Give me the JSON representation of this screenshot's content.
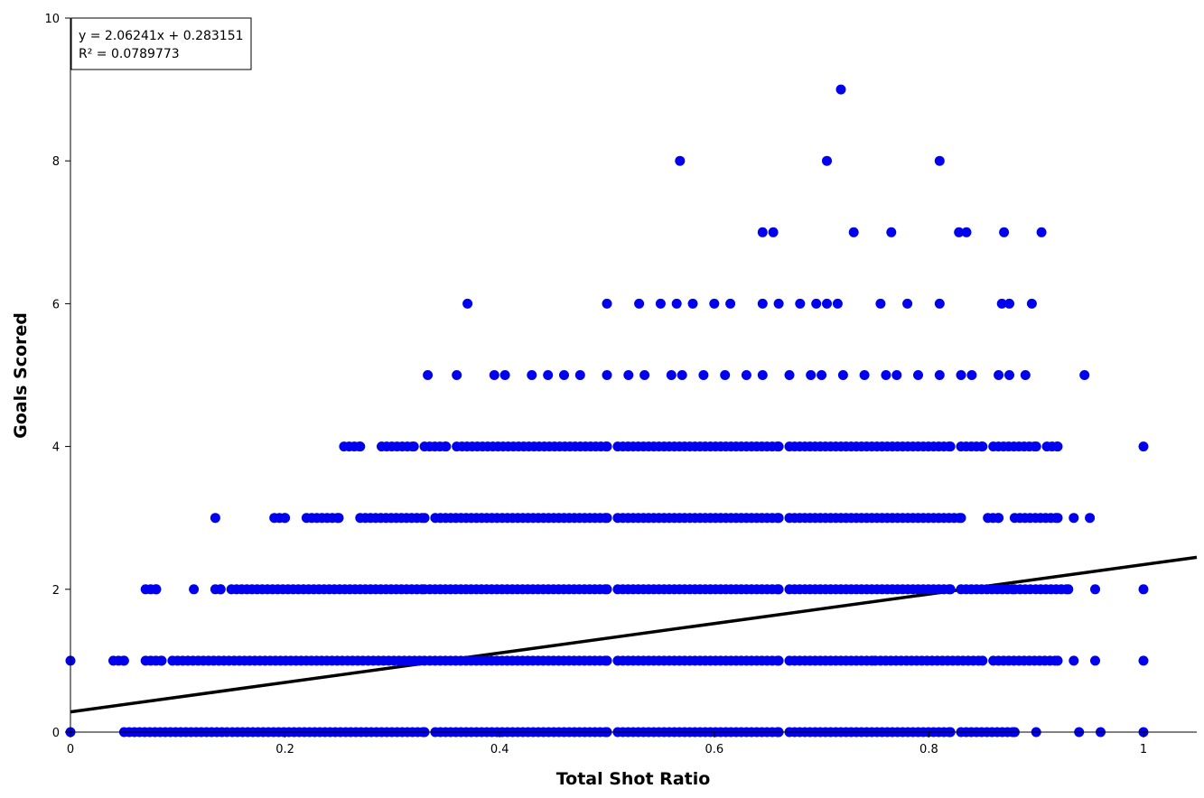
{
  "chart_data": {
    "type": "scatter",
    "title": "",
    "xlabel": "Total Shot Ratio",
    "ylabel": "Goals Scored",
    "xlim": [
      0,
      1.05
    ],
    "ylim": [
      0,
      10
    ],
    "x_ticks": [
      "0",
      "0.2",
      "0.4",
      "0.6",
      "0.8",
      "1"
    ],
    "x_tick_values": [
      0,
      0.2,
      0.4,
      0.6,
      0.8,
      1
    ],
    "y_ticks": [
      "0",
      "2",
      "4",
      "6",
      "8",
      "10"
    ],
    "y_tick_values": [
      0,
      2,
      4,
      6,
      8,
      10
    ],
    "grid": false,
    "point_color": "#0000ee",
    "trendline": {
      "slope": 2.06241,
      "intercept": 0.283151,
      "color": "#000000",
      "equation_label": "y = 2.06241x + 0.283151",
      "r2_label": "R² = 0.0789773"
    },
    "series": [
      {
        "point_groups": [
          {
            "y": 0,
            "ranges": [
              [
                0.0,
                0.0
              ],
              [
                0.05,
                0.33
              ],
              [
                0.34,
                0.5
              ],
              [
                0.51,
                0.66
              ],
              [
                0.67,
                0.82
              ],
              [
                0.83,
                0.88
              ],
              [
                0.9,
                0.9
              ],
              [
                0.94,
                0.94
              ],
              [
                0.96,
                0.96
              ],
              [
                1.0,
                1.0
              ]
            ]
          },
          {
            "y": 1,
            "ranges": [
              [
                0.0,
                0.0
              ],
              [
                0.04,
                0.05
              ],
              [
                0.07,
                0.085
              ],
              [
                0.095,
                0.33
              ],
              [
                0.335,
                0.5
              ],
              [
                0.51,
                0.66
              ],
              [
                0.67,
                0.75
              ],
              [
                0.755,
                0.85
              ],
              [
                0.86,
                0.92
              ],
              [
                0.935,
                0.935
              ],
              [
                0.955,
                0.955
              ],
              [
                1.0,
                1.0
              ]
            ]
          },
          {
            "y": 2,
            "ranges": [
              [
                0.07,
                0.08
              ],
              [
                0.115,
                0.115
              ],
              [
                0.135,
                0.14
              ],
              [
                0.15,
                0.33
              ],
              [
                0.335,
                0.5
              ],
              [
                0.51,
                0.66
              ],
              [
                0.67,
                0.82
              ],
              [
                0.83,
                0.88
              ],
              [
                0.885,
                0.93
              ],
              [
                0.955,
                0.955
              ],
              [
                1.0,
                1.0
              ]
            ]
          },
          {
            "y": 3,
            "ranges": [
              [
                0.135,
                0.135
              ],
              [
                0.19,
                0.2
              ],
              [
                0.22,
                0.25
              ],
              [
                0.27,
                0.33
              ],
              [
                0.34,
                0.5
              ],
              [
                0.51,
                0.66
              ],
              [
                0.67,
                0.83
              ],
              [
                0.855,
                0.865
              ],
              [
                0.88,
                0.92
              ],
              [
                0.935,
                0.935
              ],
              [
                0.95,
                0.95
              ]
            ]
          },
          {
            "y": 4,
            "ranges": [
              [
                0.255,
                0.27
              ],
              [
                0.29,
                0.32
              ],
              [
                0.33,
                0.35
              ],
              [
                0.36,
                0.5
              ],
              [
                0.51,
                0.66
              ],
              [
                0.67,
                0.82
              ],
              [
                0.83,
                0.85
              ],
              [
                0.86,
                0.9
              ],
              [
                0.91,
                0.92
              ],
              [
                1.0,
                1.0
              ]
            ]
          }
        ],
        "points": [
          [
            0.333,
            5
          ],
          [
            0.36,
            5
          ],
          [
            0.395,
            5
          ],
          [
            0.405,
            5
          ],
          [
            0.43,
            5
          ],
          [
            0.445,
            5
          ],
          [
            0.46,
            5
          ],
          [
            0.475,
            5
          ],
          [
            0.5,
            5
          ],
          [
            0.52,
            5
          ],
          [
            0.535,
            5
          ],
          [
            0.56,
            5
          ],
          [
            0.57,
            5
          ],
          [
            0.59,
            5
          ],
          [
            0.61,
            5
          ],
          [
            0.63,
            5
          ],
          [
            0.645,
            5
          ],
          [
            0.67,
            5
          ],
          [
            0.69,
            5
          ],
          [
            0.7,
            5
          ],
          [
            0.72,
            5
          ],
          [
            0.74,
            5
          ],
          [
            0.76,
            5
          ],
          [
            0.77,
            5
          ],
          [
            0.79,
            5
          ],
          [
            0.81,
            5
          ],
          [
            0.83,
            5
          ],
          [
            0.84,
            5
          ],
          [
            0.865,
            5
          ],
          [
            0.875,
            5
          ],
          [
            0.89,
            5
          ],
          [
            0.945,
            5
          ],
          [
            0.37,
            6
          ],
          [
            0.5,
            6
          ],
          [
            0.53,
            6
          ],
          [
            0.55,
            6
          ],
          [
            0.565,
            6
          ],
          [
            0.58,
            6
          ],
          [
            0.6,
            6
          ],
          [
            0.615,
            6
          ],
          [
            0.645,
            6
          ],
          [
            0.66,
            6
          ],
          [
            0.68,
            6
          ],
          [
            0.695,
            6
          ],
          [
            0.705,
            6
          ],
          [
            0.715,
            6
          ],
          [
            0.755,
            6
          ],
          [
            0.78,
            6
          ],
          [
            0.81,
            6
          ],
          [
            0.868,
            6
          ],
          [
            0.875,
            6
          ],
          [
            0.896,
            6
          ],
          [
            0.645,
            7
          ],
          [
            0.655,
            7
          ],
          [
            0.73,
            7
          ],
          [
            0.765,
            7
          ],
          [
            0.828,
            7
          ],
          [
            0.835,
            7
          ],
          [
            0.87,
            7
          ],
          [
            0.905,
            7
          ],
          [
            0.568,
            8
          ],
          [
            0.705,
            8
          ],
          [
            0.81,
            8
          ],
          [
            0.718,
            9
          ]
        ]
      }
    ]
  }
}
